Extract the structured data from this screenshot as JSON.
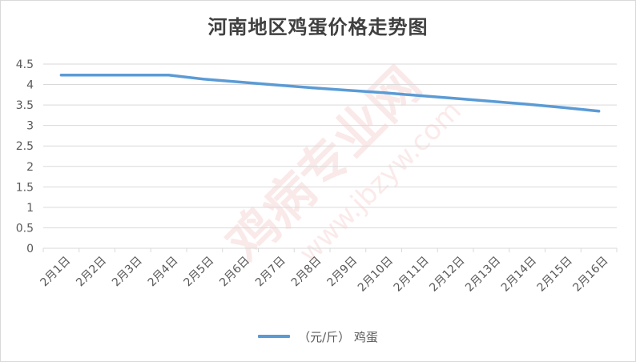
{
  "colors": {
    "series": "#5b9bd5",
    "grid": "#d9d9d9",
    "text": "#595959",
    "watermark": "#e05a5a"
  },
  "watermark": {
    "text_main": "鸡病专业网",
    "text_url": "www.jbzyw.com"
  },
  "chart_data": {
    "type": "line",
    "title": "河南地区鸡蛋价格走势图",
    "xlabel": "",
    "ylabel": "",
    "categories": [
      "2月1日",
      "2月2日",
      "2月3日",
      "2月4日",
      "2月5日",
      "2月6日",
      "2月7日",
      "2月8日",
      "2月9日",
      "2月10日",
      "2月11日",
      "2月12日",
      "2月13日",
      "2月14日",
      "2月15日",
      "2月16日"
    ],
    "y_ticks": [
      "0",
      "0.5",
      "1",
      "1.5",
      "2",
      "2.5",
      "3",
      "3.5",
      "4",
      "4.5"
    ],
    "ylim": [
      0,
      4.5
    ],
    "grid": true,
    "legend_position": "bottom",
    "series": [
      {
        "name": "（元/斤）  鸡蛋",
        "values": [
          4.23,
          4.23,
          4.23,
          4.23,
          4.13,
          4.06,
          3.99,
          3.92,
          3.86,
          3.8,
          3.73,
          3.66,
          3.59,
          3.52,
          3.44,
          3.35
        ]
      }
    ]
  }
}
